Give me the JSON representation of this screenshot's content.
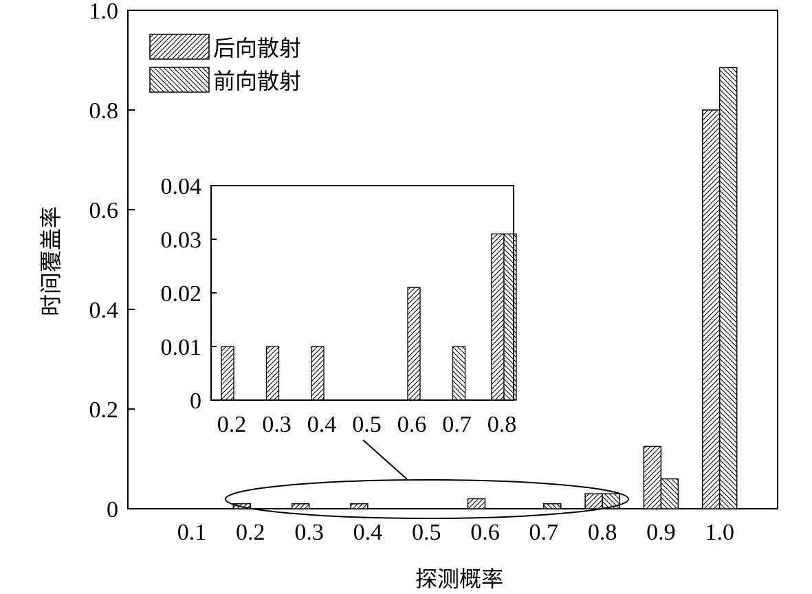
{
  "chart_data": [
    {
      "type": "bar",
      "xlabel": "探测概率",
      "ylabel": "时间覆盖率",
      "categories": [
        "0.1",
        "0.2",
        "0.3",
        "0.4",
        "0.5",
        "0.6",
        "0.7",
        "0.8",
        "0.9",
        "1.0"
      ],
      "yticks": [
        "0",
        "0.2",
        "0.4",
        "0.6",
        "0.8",
        "1.0"
      ],
      "ylim": [
        0,
        1.0
      ],
      "legend_position": "top-left",
      "series": [
        {
          "name": "后向散射",
          "pattern": "forward-diagonal",
          "values": [
            0,
            0.01,
            0.01,
            0.01,
            0,
            0.02,
            0,
            0.03,
            0.125,
            0.8
          ]
        },
        {
          "name": "前向散射",
          "pattern": "back-diagonal",
          "values": [
            0,
            0,
            0,
            0,
            0,
            0,
            0.01,
            0.03,
            0.06,
            0.885
          ]
        }
      ]
    },
    {
      "type": "bar",
      "role": "inset",
      "categories": [
        "0.2",
        "0.3",
        "0.4",
        "0.5",
        "0.6",
        "0.7",
        "0.8"
      ],
      "yticks": [
        "0",
        "0.01",
        "0.02",
        "0.03",
        "0.04"
      ],
      "ylim": [
        0,
        0.04
      ],
      "series": [
        {
          "name": "后向散射",
          "values": [
            0.01,
            0.01,
            0.01,
            0,
            0.021,
            0,
            0.031
          ]
        },
        {
          "name": "前向散射",
          "values": [
            0,
            0,
            0,
            0,
            0,
            0.01,
            0.031
          ]
        }
      ]
    }
  ]
}
